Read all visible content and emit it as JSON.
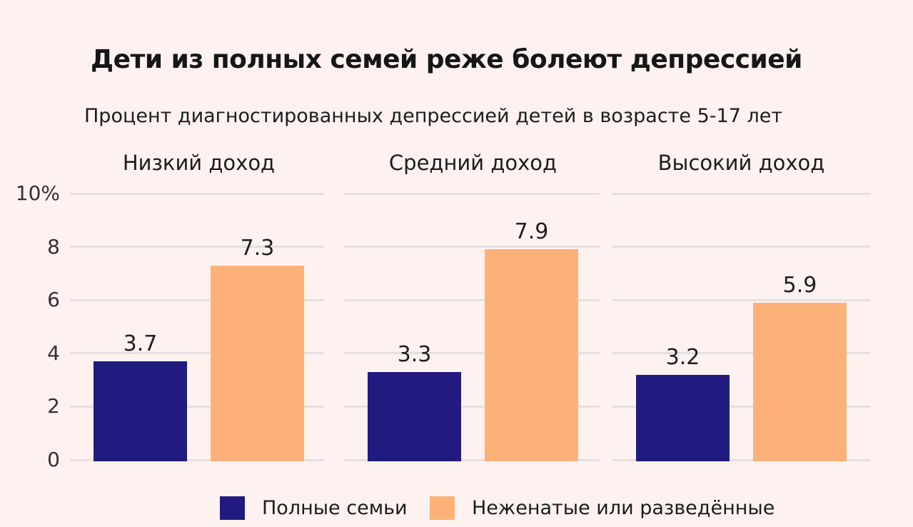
{
  "page": {
    "background": "#fdf2ef"
  },
  "chart_data": {
    "type": "bar",
    "title": "Дети из полных семей реже болеют депрессией",
    "subtitle": "Процент диагностированных депрессией детей в возрасте 5-17 лет",
    "panels": [
      {
        "label": "Низкий доход",
        "slug": "low-income",
        "values": [
          3.7,
          7.3
        ]
      },
      {
        "label": "Средний доход",
        "slug": "mid-income",
        "values": [
          3.3,
          7.9
        ]
      },
      {
        "label": "Высокий доход",
        "slug": "high-income",
        "values": [
          3.2,
          5.9
        ]
      }
    ],
    "series": [
      {
        "name": "Полные семьи",
        "slug": "intact-families",
        "color": "#211b80"
      },
      {
        "name": "Неженатые или разведённые",
        "slug": "unmarried-or-divorced",
        "color": "#fcb179"
      }
    ],
    "y_axis": {
      "ticks": [
        "10%",
        "8",
        "6",
        "4",
        "2",
        "0"
      ],
      "tick_values": [
        10,
        8,
        6,
        4,
        2,
        0
      ],
      "min": 0,
      "max": 10,
      "unit": "%"
    },
    "grid": true,
    "legend_position": "bottom",
    "gridline_color": "#e5dfe1"
  }
}
